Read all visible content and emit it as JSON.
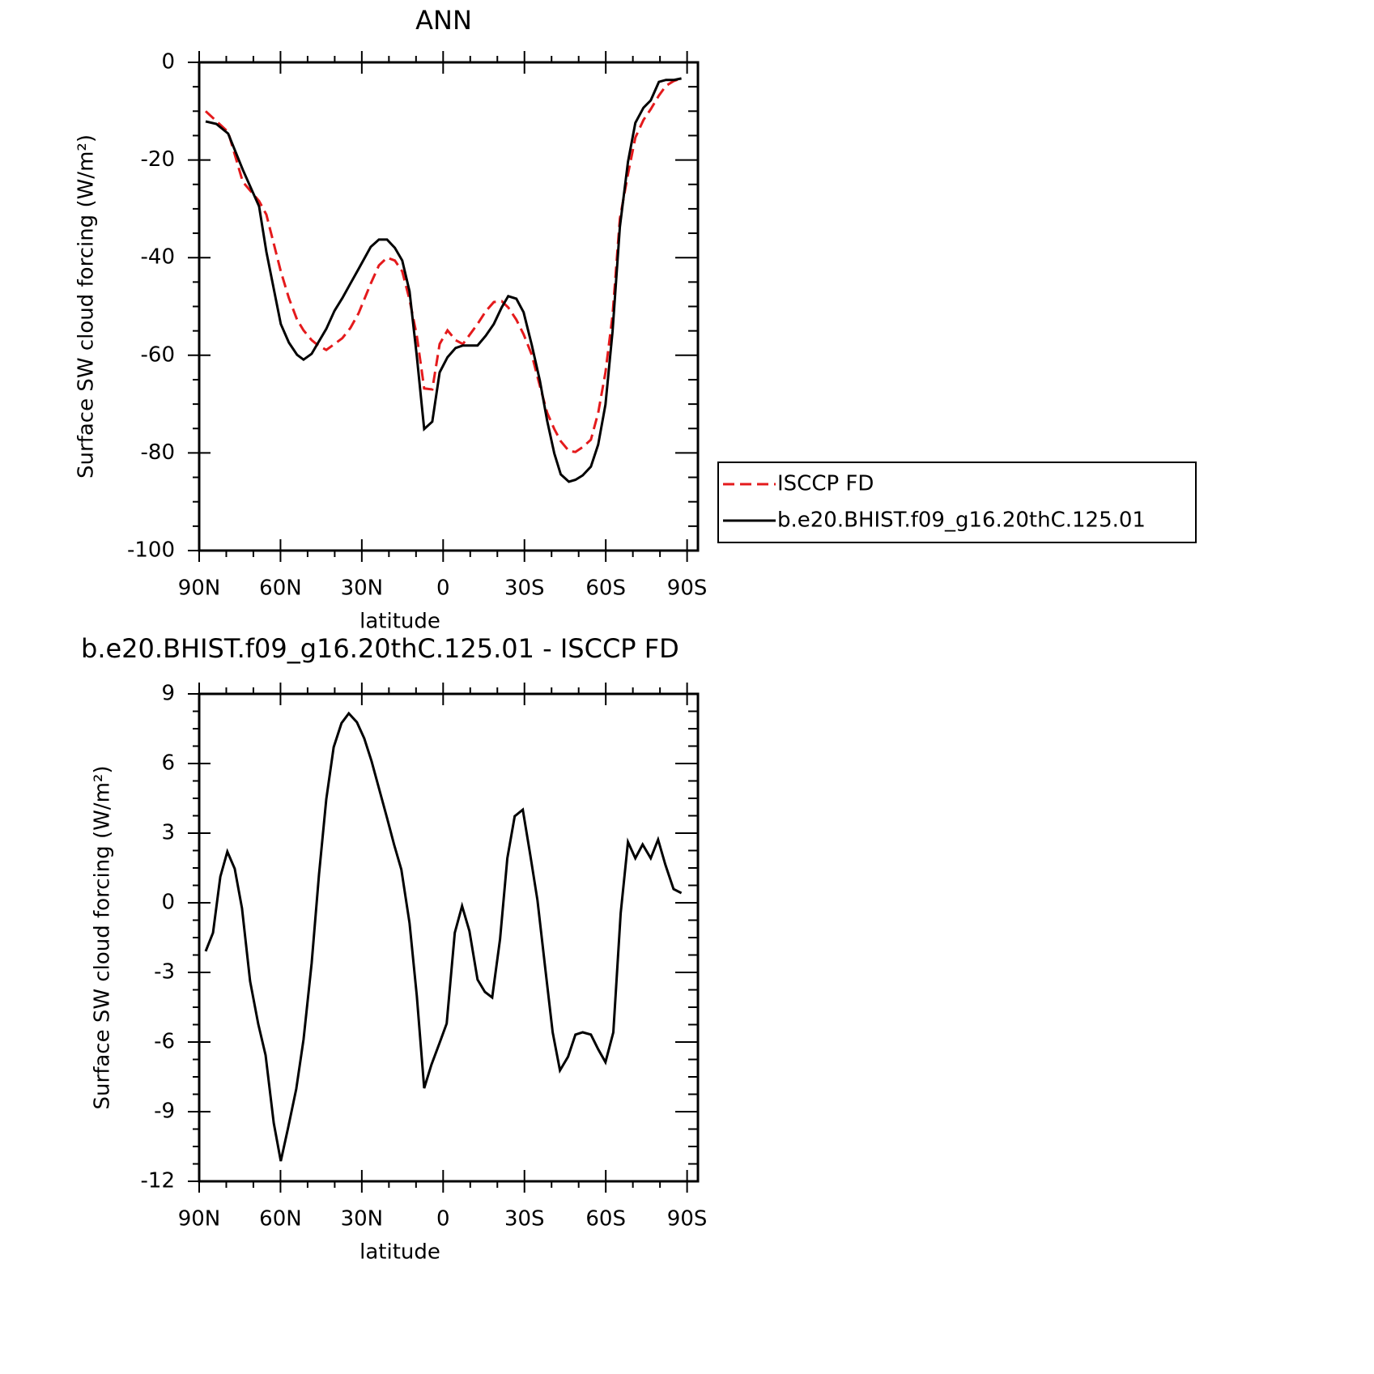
{
  "chart_data": [
    {
      "type": "line",
      "title": "ANN",
      "xlabel": "latitude",
      "ylabel": "Surface SW cloud forcing (W/m²)",
      "x": [
        87.6,
        83.7,
        79.3,
        73.9,
        67.9,
        65.2,
        59.9,
        56.9,
        53.9,
        51.5,
        48.5,
        46.1,
        43.1,
        40.1,
        37.2,
        34.2,
        31.2,
        26.7,
        23.7,
        20.7,
        17.8,
        15.1,
        12.4,
        9.7,
        7.0,
        4.0,
        1.3,
        -1.6,
        -4.6,
        -7.3,
        -12.7,
        -15.7,
        -18.7,
        -21.6,
        -24.0,
        -27.0,
        -29.7,
        -32.7,
        -35.7,
        -38.4,
        -41.0,
        -43.4,
        -46.4,
        -48.8,
        -51.5,
        -54.5,
        -57.2,
        -59.9,
        -62.5,
        -65.2,
        -68.2,
        -70.9,
        -73.9,
        -76.6,
        -79.6,
        -82.2,
        -85.2,
        -87.9
      ],
      "series": [
        {
          "name": "ISCCP FD",
          "color": "#e41a1c",
          "style": "dashed",
          "values": [
            -10,
            -12,
            -14.3,
            -24.5,
            -28.4,
            -31.2,
            -42.8,
            -48.3,
            -52.7,
            -54.9,
            -56.9,
            -58,
            -58.9,
            -57.7,
            -56.5,
            -54.4,
            -51.4,
            -45.3,
            -41.6,
            -40,
            -40.6,
            -42.8,
            -48.6,
            -56,
            -66.8,
            -67,
            -57.7,
            -54.9,
            -56.9,
            -57.7,
            -53.6,
            -51,
            -49.1,
            -48.9,
            -50.2,
            -52.7,
            -55.7,
            -59.9,
            -66.3,
            -71.8,
            -75.1,
            -77.6,
            -79.6,
            -79.8,
            -78.8,
            -77.3,
            -71.8,
            -63.5,
            -51.9,
            -32,
            -22.9,
            -15.4,
            -11.8,
            -9.6,
            -6.8,
            -4.8,
            -3.8,
            -3.3
          ]
        },
        {
          "name": "b.e20.BHIST.f09_g16.20thC.125.01",
          "color": "#000000",
          "style": "solid",
          "values": [
            -12.1,
            -12.6,
            -14.6,
            -22,
            -29.5,
            -38.8,
            -53.6,
            -57.4,
            -59.9,
            -60.9,
            -59.7,
            -57.4,
            -54.6,
            -50.9,
            -48.3,
            -45.3,
            -42.3,
            -37.8,
            -36.3,
            -36.3,
            -38,
            -40.6,
            -46.9,
            -60.2,
            -75.1,
            -73.6,
            -63.5,
            -60.4,
            -58.5,
            -58,
            -58,
            -56,
            -53.6,
            -50.2,
            -47.9,
            -48.4,
            -51.2,
            -57.9,
            -65.2,
            -73.5,
            -80.1,
            -84.4,
            -85.9,
            -85.5,
            -84.6,
            -82.8,
            -78.3,
            -70.1,
            -55.2,
            -33.7,
            -20.4,
            -12.4,
            -9.3,
            -7.8,
            -4,
            -3.6,
            -3.6,
            -3.3
          ]
        }
      ],
      "xlim": [
        90,
        -94
      ],
      "ylim": [
        -100,
        0
      ],
      "xticks": [
        {
          "value": 90,
          "label": "90N"
        },
        {
          "value": 60,
          "label": "60N"
        },
        {
          "value": 30,
          "label": "30N"
        },
        0,
        {
          "value": -30,
          "label": "30S"
        },
        {
          "value": -60,
          "label": "60S"
        },
        {
          "value": -90,
          "label": "90S"
        }
      ],
      "yticks": [
        -100,
        -80,
        -60,
        -40,
        -20,
        0
      ],
      "legend": "right"
    },
    {
      "type": "line",
      "title": "b.e20.BHIST.f09_g16.20thC.125.01 - ISCCP FD",
      "xlabel": "latitude",
      "ylabel": "Surface SW cloud forcing (W/m²)",
      "x": [
        87.6,
        84.9,
        82.2,
        79.6,
        76.9,
        74.2,
        71.2,
        68.2,
        65.5,
        62.5,
        59.9,
        57.2,
        54.2,
        51.5,
        48.5,
        45.8,
        43.1,
        40.4,
        37.5,
        34.8,
        31.8,
        29.1,
        26.4,
        20.7,
        18.1,
        15.4,
        12.4,
        9.7,
        7.0,
        4.3,
        1.3,
        -1.3,
        -4.3,
        -7.0,
        -9.7,
        -12.7,
        -15.4,
        -18.1,
        -21.0,
        -23.7,
        -26.4,
        -29.4,
        -32.1,
        -34.8,
        -37.8,
        -40.4,
        -43.1,
        -46.1,
        -48.8,
        -51.5,
        -54.5,
        -57.2,
        -59.9,
        -62.8,
        -65.5,
        -68.2,
        -70.9,
        -73.6,
        -76.6,
        -79.3,
        -82.0,
        -85.0,
        -87.9
      ],
      "series": [
        {
          "color": "#000000",
          "style": "solid",
          "values": [
            -2.09,
            -1.29,
            1.12,
            2.2,
            1.47,
            -0.24,
            -3.38,
            -5.23,
            -6.56,
            -9.49,
            -11.13,
            -9.7,
            -8.02,
            -5.89,
            -2.61,
            1.22,
            4.47,
            6.7,
            7.74,
            8.16,
            7.78,
            7.08,
            6.1,
            3.66,
            2.51,
            1.43,
            -0.87,
            -4.01,
            -7.99,
            -6.97,
            -6.03,
            -5.2,
            -1.29,
            -0.14,
            -1.22,
            -3.31,
            -3.84,
            -4.08,
            -1.57,
            1.92,
            3.73,
            4.01,
            2.09,
            0.11,
            -2.96,
            -5.58,
            -7.22,
            -6.63,
            -5.68,
            -5.58,
            -5.68,
            -6.31,
            -6.87,
            -5.58,
            -0.45,
            2.62,
            1.92,
            2.51,
            1.92,
            2.72,
            1.64,
            0.59,
            0.42
          ]
        }
      ],
      "xlim": [
        90,
        -94
      ],
      "ylim": [
        -12,
        9
      ],
      "xticks": [
        {
          "value": 90,
          "label": "90N"
        },
        {
          "value": 60,
          "label": "60N"
        },
        {
          "value": 30,
          "label": "30N"
        },
        0,
        {
          "value": -30,
          "label": "30S"
        },
        {
          "value": -60,
          "label": "60S"
        },
        {
          "value": -90,
          "label": "90S"
        }
      ],
      "yticks": [
        -12,
        -9,
        -6,
        -3,
        0,
        3,
        6,
        9
      ]
    }
  ]
}
